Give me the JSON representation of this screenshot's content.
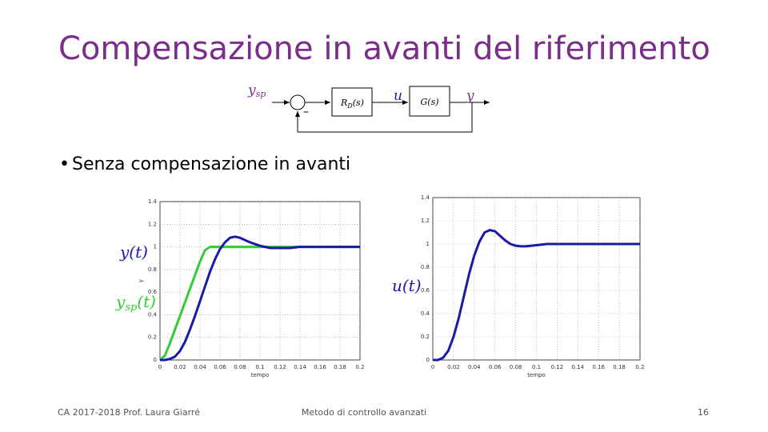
{
  "header": {
    "title": "Compensazione in avanti del riferimento"
  },
  "diagram": {
    "ysp": {
      "base": "y",
      "sub": "sp"
    },
    "u": "u",
    "y": "y",
    "controller": {
      "base": "R",
      "sub": "D",
      "tail": "(s)"
    },
    "plant": "G(s)",
    "minus": "–"
  },
  "bullet": "Senza compensazione in avanti",
  "chart_data": [
    {
      "type": "line",
      "x_label": "tempo",
      "y_label": "y",
      "xlim": [
        0,
        0.2
      ],
      "ylim": [
        0,
        1.4
      ],
      "xticks": [
        0,
        0.02,
        0.04,
        0.06,
        0.08,
        0.1,
        0.12,
        0.14,
        0.16,
        0.18,
        0.2
      ],
      "yticks": [
        0,
        0.2,
        0.4,
        0.6,
        0.8,
        1,
        1.2,
        1.4
      ],
      "grid": true,
      "annotations": [
        "y(t)",
        {
          "base": "y",
          "sub": "sp",
          "tail": "(t)"
        }
      ],
      "x": [
        0,
        0.005,
        0.01,
        0.015,
        0.02,
        0.025,
        0.03,
        0.035,
        0.04,
        0.045,
        0.05,
        0.055,
        0.06,
        0.065,
        0.07,
        0.075,
        0.08,
        0.085,
        0.09,
        0.1,
        0.11,
        0.12,
        0.13,
        0.14,
        0.15,
        0.16,
        0.17,
        0.18,
        0.19,
        0.2
      ],
      "series": [
        {
          "color": "#33cc33",
          "values": [
            0,
            0.04,
            0.15,
            0.27,
            0.39,
            0.51,
            0.63,
            0.75,
            0.87,
            0.97,
            1,
            1,
            1,
            1,
            1,
            1,
            1,
            1,
            1,
            1,
            1,
            1,
            1,
            1,
            1,
            1,
            1,
            1,
            1,
            1
          ]
        },
        {
          "color": "#1a1aa8",
          "values": [
            0,
            0,
            0.01,
            0.03,
            0.08,
            0.16,
            0.27,
            0.39,
            0.52,
            0.65,
            0.78,
            0.89,
            0.98,
            1.04,
            1.08,
            1.09,
            1.08,
            1.06,
            1.04,
            1.01,
            0.99,
            0.99,
            0.99,
            1,
            1,
            1,
            1,
            1,
            1,
            1
          ]
        }
      ]
    },
    {
      "type": "line",
      "x_label": "tempo",
      "xlim": [
        0,
        0.2
      ],
      "ylim": [
        0,
        1.4
      ],
      "xticks": [
        0,
        0.02,
        0.04,
        0.06,
        0.08,
        0.1,
        0.12,
        0.14,
        0.16,
        0.18,
        0.2
      ],
      "yticks": [
        0,
        0.2,
        0.4,
        0.6,
        0.8,
        1,
        1.2,
        1.4
      ],
      "grid": true,
      "annotations": [
        "u(t)"
      ],
      "x": [
        0,
        0.005,
        0.01,
        0.015,
        0.02,
        0.025,
        0.03,
        0.035,
        0.04,
        0.045,
        0.05,
        0.055,
        0.06,
        0.065,
        0.07,
        0.075,
        0.08,
        0.085,
        0.09,
        0.1,
        0.11,
        0.12,
        0.13,
        0.14,
        0.15,
        0.16,
        0.17,
        0.18,
        0.19,
        0.2
      ],
      "series": [
        {
          "color": "#1a1aa8",
          "values": [
            0,
            0,
            0.02,
            0.08,
            0.2,
            0.36,
            0.55,
            0.74,
            0.9,
            1.02,
            1.1,
            1.12,
            1.11,
            1.07,
            1.03,
            1,
            0.985,
            0.98,
            0.98,
            0.99,
            1,
            1,
            1,
            1,
            1,
            1,
            1,
            1,
            1,
            1
          ]
        }
      ]
    }
  ],
  "footer": {
    "left": "CA 2017-2018 Prof. Laura Giarré",
    "center": "Metodo di controllo avanzati",
    "page": "16"
  }
}
